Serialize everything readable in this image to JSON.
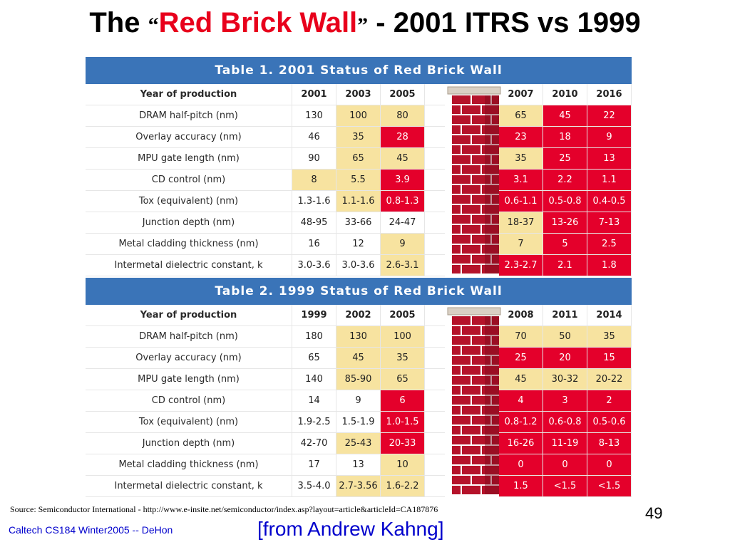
{
  "title": {
    "prefix": "The ",
    "open_quote": "“",
    "highlight": "Red Brick Wall",
    "close_quote": "”",
    "suffix": " - 2001 ITRS vs 1999",
    "highlight_color": "#e8001c"
  },
  "tables": [
    {
      "heading": "Table 1. 2001 Status of Red Brick Wall",
      "header_label": "Year of production",
      "left_years": [
        "2001",
        "2003",
        "2005"
      ],
      "right_years": [
        "2007",
        "2010",
        "2016"
      ],
      "rows": [
        {
          "label": "DRAM half-pitch (nm)",
          "left": [
            "130",
            "100",
            "80"
          ],
          "left_c": [
            "w",
            "y",
            "y"
          ],
          "right": [
            "65",
            "45",
            "22"
          ],
          "right_c": [
            "y",
            "r",
            "r"
          ]
        },
        {
          "label": "Overlay accuracy (nm)",
          "left": [
            "46",
            "35",
            "28"
          ],
          "left_c": [
            "w",
            "y",
            "r"
          ],
          "right": [
            "23",
            "18",
            "9"
          ],
          "right_c": [
            "r",
            "r",
            "r"
          ]
        },
        {
          "label": "MPU gate length (nm)",
          "left": [
            "90",
            "65",
            "45"
          ],
          "left_c": [
            "w",
            "y",
            "y"
          ],
          "right": [
            "35",
            "25",
            "13"
          ],
          "right_c": [
            "y",
            "r",
            "r"
          ]
        },
        {
          "label": "CD control (nm)",
          "left": [
            "8",
            "5.5",
            "3.9"
          ],
          "left_c": [
            "y",
            "y",
            "r"
          ],
          "right": [
            "3.1",
            "2.2",
            "1.1"
          ],
          "right_c": [
            "r",
            "r",
            "r"
          ]
        },
        {
          "label": "Tox (equivalent) (nm)",
          "left": [
            "1.3-1.6",
            "1.1-1.6",
            "0.8-1.3"
          ],
          "left_c": [
            "w",
            "y",
            "r"
          ],
          "right": [
            "0.6-1.1",
            "0.5-0.8",
            "0.4-0.5"
          ],
          "right_c": [
            "r",
            "r",
            "r"
          ]
        },
        {
          "label": "Junction depth (nm)",
          "left": [
            "48-95",
            "33-66",
            "24-47"
          ],
          "left_c": [
            "w",
            "w",
            "w"
          ],
          "right": [
            "18-37",
            "13-26",
            "7-13"
          ],
          "right_c": [
            "y",
            "r",
            "r"
          ]
        },
        {
          "label": "Metal cladding thickness (nm)",
          "left": [
            "16",
            "12",
            "9"
          ],
          "left_c": [
            "w",
            "w",
            "y"
          ],
          "right": [
            "7",
            "5",
            "2.5"
          ],
          "right_c": [
            "y",
            "r",
            "r"
          ]
        },
        {
          "label": "Intermetal dielectric constant, k",
          "left": [
            "3.0-3.6",
            "3.0-3.6",
            "2.6-3.1"
          ],
          "left_c": [
            "w",
            "w",
            "y"
          ],
          "right": [
            "2.3-2.7",
            "2.1",
            "1.8"
          ],
          "right_c": [
            "r",
            "r",
            "r"
          ]
        }
      ]
    },
    {
      "heading": "Table 2. 1999 Status of Red Brick Wall",
      "header_label": "Year of production",
      "left_years": [
        "1999",
        "2002",
        "2005"
      ],
      "right_years": [
        "2008",
        "2011",
        "2014"
      ],
      "rows": [
        {
          "label": "DRAM half-pitch (nm)",
          "left": [
            "180",
            "130",
            "100"
          ],
          "left_c": [
            "w",
            "y",
            "y"
          ],
          "right": [
            "70",
            "50",
            "35"
          ],
          "right_c": [
            "y",
            "y",
            "y"
          ]
        },
        {
          "label": "Overlay accuracy (nm)",
          "left": [
            "65",
            "45",
            "35"
          ],
          "left_c": [
            "w",
            "y",
            "y"
          ],
          "right": [
            "25",
            "20",
            "15"
          ],
          "right_c": [
            "r",
            "r",
            "r"
          ]
        },
        {
          "label": "MPU gate length (nm)",
          "left": [
            "140",
            "85-90",
            "65"
          ],
          "left_c": [
            "w",
            "y",
            "y"
          ],
          "right": [
            "45",
            "30-32",
            "20-22"
          ],
          "right_c": [
            "y",
            "y",
            "y"
          ]
        },
        {
          "label": "CD control (nm)",
          "left": [
            "14",
            "9",
            "6"
          ],
          "left_c": [
            "w",
            "w",
            "r"
          ],
          "right": [
            "4",
            "3",
            "2"
          ],
          "right_c": [
            "r",
            "r",
            "r"
          ]
        },
        {
          "label": "Tox (equivalent) (nm)",
          "left": [
            "1.9-2.5",
            "1.5-1.9",
            "1.0-1.5"
          ],
          "left_c": [
            "w",
            "w",
            "r"
          ],
          "right": [
            "0.8-1.2",
            "0.6-0.8",
            "0.5-0.6"
          ],
          "right_c": [
            "r",
            "r",
            "r"
          ]
        },
        {
          "label": "Junction depth (nm)",
          "left": [
            "42-70",
            "25-43",
            "20-33"
          ],
          "left_c": [
            "w",
            "y",
            "r"
          ],
          "right": [
            "16-26",
            "11-19",
            "8-13"
          ],
          "right_c": [
            "r",
            "r",
            "r"
          ]
        },
        {
          "label": "Metal cladding thickness (nm)",
          "left": [
            "17",
            "13",
            "10"
          ],
          "left_c": [
            "w",
            "w",
            "y"
          ],
          "right": [
            "0",
            "0",
            "0"
          ],
          "right_c": [
            "r",
            "r",
            "r"
          ]
        },
        {
          "label": "Intermetal dielectric constant, k",
          "left": [
            "3.5-4.0",
            "2.7-3.56",
            "1.6-2.2"
          ],
          "left_c": [
            "w",
            "y",
            "y"
          ],
          "right": [
            "1.5",
            "<1.5",
            "<1.5"
          ],
          "right_c": [
            "r",
            "r",
            "r"
          ]
        }
      ]
    }
  ],
  "footer": {
    "source": "Source:  Semiconductor International - http://www.e-insite.net/semiconductor/index.asp?layout=article&articleId=CA187876",
    "page_number": "49",
    "course": "Caltech CS184 Winter2005 -- DeHon",
    "attribution": "[from Andrew Kahng]"
  },
  "colors": {
    "table_header_blue": "#3a74b8",
    "cell_yellow": "#f7e3a0",
    "cell_red": "#e4002b",
    "brick": "#b5122a",
    "mortar": "#e8e0d0",
    "footer_blue": "#0000cc"
  }
}
